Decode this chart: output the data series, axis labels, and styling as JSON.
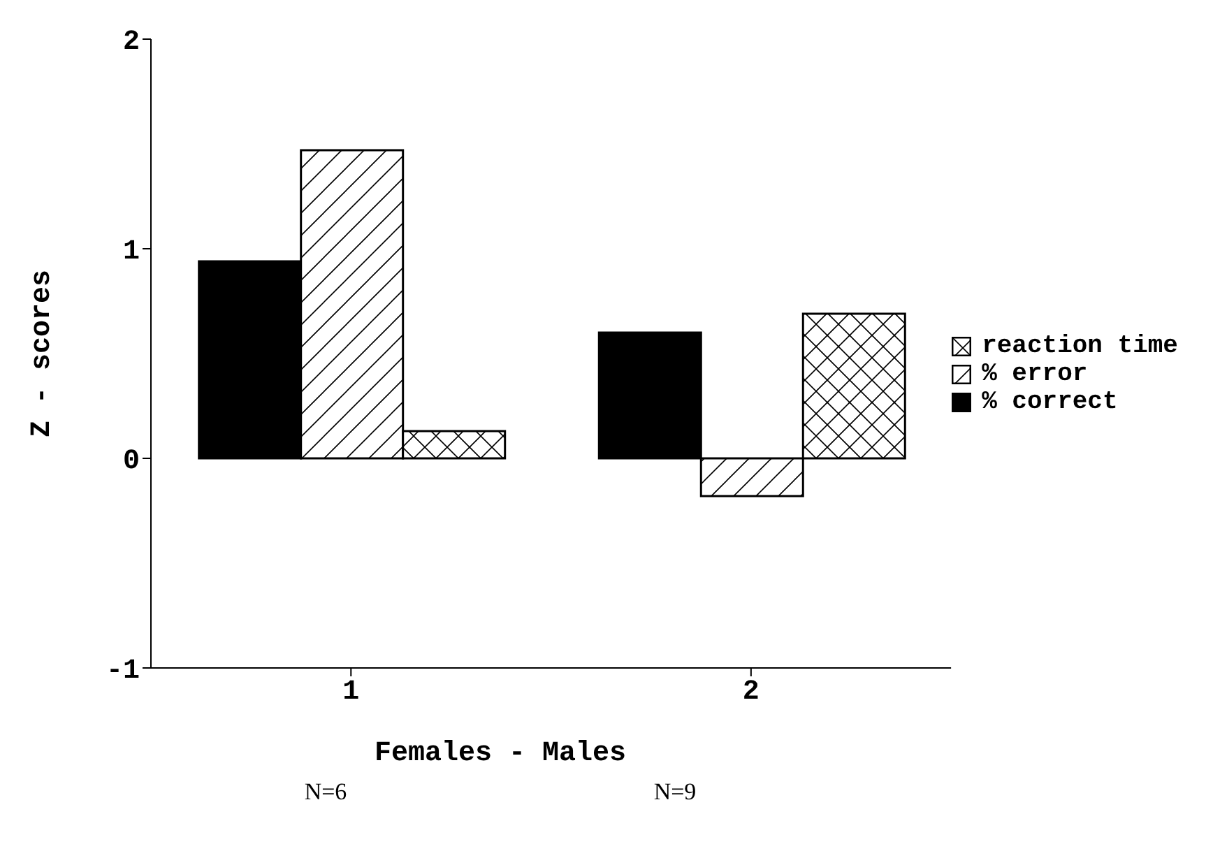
{
  "chart_data": {
    "type": "bar",
    "categories": [
      "1",
      "2"
    ],
    "series": [
      {
        "name": "% correct",
        "color": "#000000",
        "values": [
          0.94,
          0.6
        ]
      },
      {
        "name": "% error",
        "color": "#000000",
        "values": [
          1.47,
          -0.18
        ]
      },
      {
        "name": "reaction time",
        "color": "#000000",
        "values": [
          0.13,
          0.69
        ]
      }
    ],
    "ylim": [
      -1,
      2
    ],
    "yticks": [
      -1,
      0,
      1,
      2
    ],
    "ylabel": "Z  -  scores",
    "xlabel": "Females     -     Males",
    "annotations": [
      "N=6",
      "N=9"
    ],
    "grid": false,
    "legend": "right"
  }
}
